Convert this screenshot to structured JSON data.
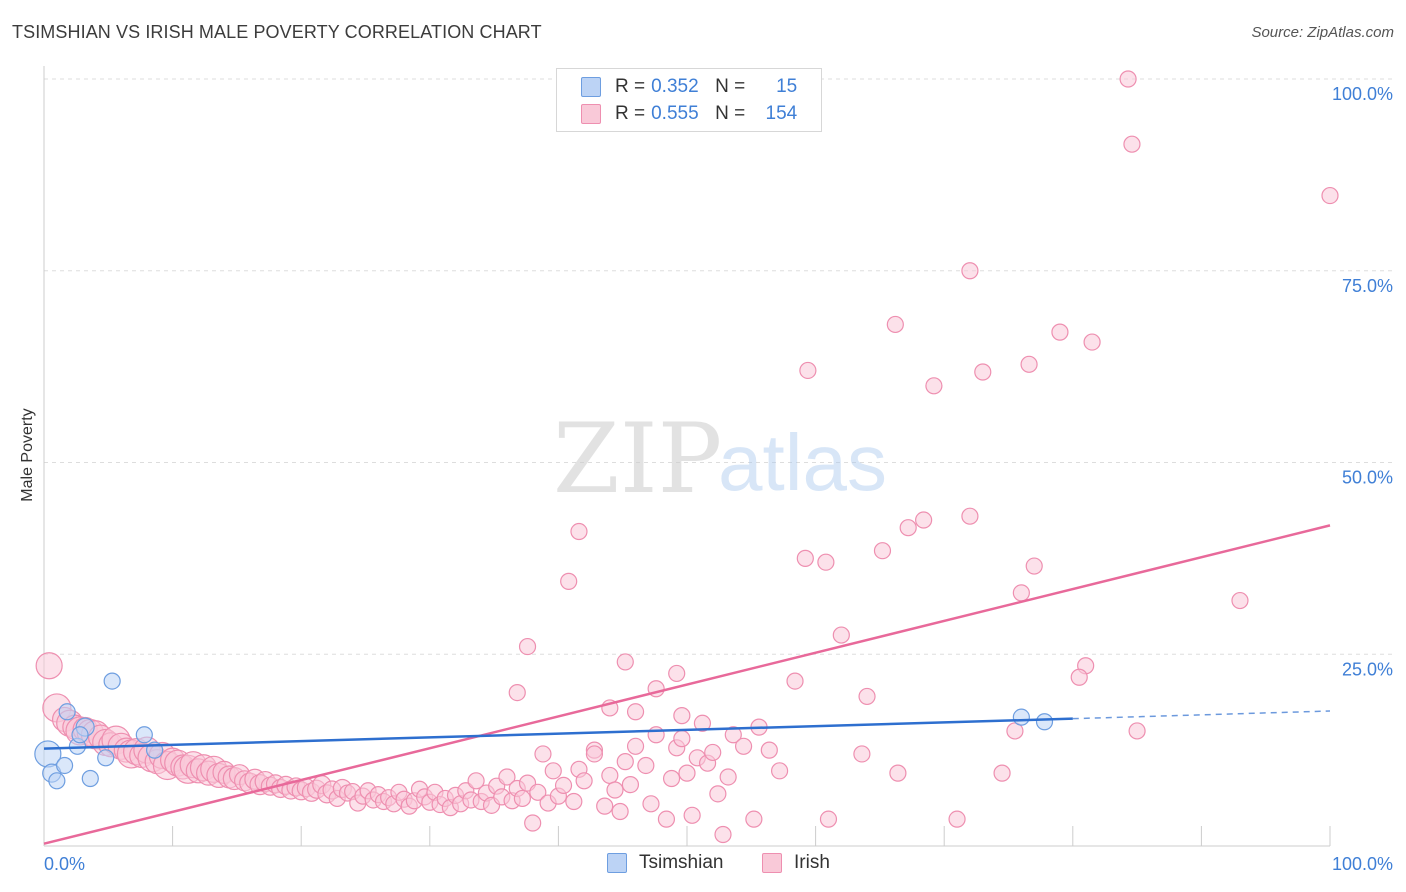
{
  "header": {
    "title": "TSIMSHIAN VS IRISH MALE POVERTY CORRELATION CHART",
    "source": "Source: ZipAtlas.com"
  },
  "colors": {
    "tsimshian_fill": "#bcd3f5",
    "tsimshian_stroke": "#6e9ee0",
    "tsimshian_line": "#2e6fcf",
    "irish_fill": "#f9c9d8",
    "irish_stroke": "#ee8fb0",
    "irish_line": "#e8699a",
    "axis_text": "#3f7fd6",
    "grid": "#dddddd",
    "watermark_zip": "#cccccc",
    "watermark_atlas": "#a9c8ee"
  },
  "legend": {
    "rows": [
      {
        "series": "Tsimshian",
        "r_label": "R =",
        "r_value": "0.352",
        "n_label": "N =",
        "n_value": "15"
      },
      {
        "series": "Irish",
        "r_label": "R =",
        "r_value": "0.555",
        "n_label": "N =",
        "n_value": "154"
      }
    ]
  },
  "watermark": {
    "zip": "ZIP",
    "atlas": "atlas"
  },
  "chart_data": {
    "type": "scatter",
    "title": "TSIMSHIAN VS IRISH MALE POVERTY CORRELATION CHART",
    "xlabel": "",
    "ylabel": "Male Poverty",
    "xlim": [
      0,
      100
    ],
    "ylim": [
      0,
      100
    ],
    "x_tick_labels": [
      "0.0%",
      "100.0%"
    ],
    "y_ticks": [
      25,
      50,
      75,
      100
    ],
    "y_tick_labels": [
      "25.0%",
      "50.0%",
      "75.0%",
      "100.0%"
    ],
    "grid": true,
    "legend_position": "top-center",
    "series": [
      {
        "name": "Tsimshian",
        "r": 0.352,
        "n": 15,
        "trend": {
          "x0": 0,
          "y0": 12.7,
          "x1": 80,
          "y1": 16.6,
          "dashed_to_x": 100,
          "dashed_to_y": 17.6
        },
        "points": [
          [
            0.3,
            12.0,
            13
          ],
          [
            0.6,
            9.5,
            9
          ],
          [
            1.0,
            8.5,
            8
          ],
          [
            1.6,
            10.5,
            8
          ],
          [
            1.8,
            17.5,
            8
          ],
          [
            2.6,
            13.0,
            8
          ],
          [
            3.2,
            15.5,
            9
          ],
          [
            3.6,
            8.8,
            8
          ],
          [
            4.8,
            11.5,
            8
          ],
          [
            5.3,
            21.5,
            8
          ],
          [
            7.8,
            14.5,
            8
          ],
          [
            8.6,
            12.5,
            8
          ],
          [
            76.0,
            16.8,
            8
          ],
          [
            77.8,
            16.2,
            8
          ],
          [
            2.8,
            14.5,
            8
          ]
        ]
      },
      {
        "name": "Irish",
        "r": 0.555,
        "n": 154,
        "trend": {
          "x0": 0,
          "y0": 0.3,
          "x1": 100,
          "y1": 41.8
        },
        "points": [
          [
            0.4,
            23.5,
            13
          ],
          [
            1.0,
            18.0,
            14
          ],
          [
            1.6,
            16.5,
            12
          ],
          [
            2.0,
            16.0,
            13
          ],
          [
            2.4,
            15.5,
            12
          ],
          [
            2.8,
            15.0,
            14
          ],
          [
            3.2,
            15.2,
            12
          ],
          [
            3.6,
            14.8,
            13
          ],
          [
            4.0,
            14.5,
            14
          ],
          [
            4.4,
            14.2,
            12
          ],
          [
            4.8,
            13.5,
            13
          ],
          [
            5.2,
            13.2,
            12
          ],
          [
            5.6,
            13.8,
            14
          ],
          [
            6.0,
            13.0,
            13
          ],
          [
            6.4,
            12.5,
            12
          ],
          [
            6.8,
            12.0,
            14
          ],
          [
            7.2,
            12.3,
            13
          ],
          [
            7.6,
            11.8,
            12
          ],
          [
            8.0,
            12.5,
            13
          ],
          [
            8.4,
            11.5,
            14
          ],
          [
            8.8,
            11.0,
            12
          ],
          [
            9.2,
            11.8,
            13
          ],
          [
            9.6,
            10.5,
            14
          ],
          [
            10.0,
            11.2,
            12
          ],
          [
            10.4,
            10.8,
            13
          ],
          [
            10.8,
            10.3,
            12
          ],
          [
            11.2,
            10.0,
            14
          ],
          [
            11.6,
            10.6,
            13
          ],
          [
            12.0,
            9.8,
            12
          ],
          [
            12.4,
            10.2,
            13
          ],
          [
            12.8,
            9.5,
            12
          ],
          [
            13.2,
            10.0,
            13
          ],
          [
            13.6,
            9.2,
            12
          ],
          [
            14.0,
            9.6,
            11
          ],
          [
            14.4,
            9.0,
            11
          ],
          [
            14.8,
            8.8,
            11
          ],
          [
            15.2,
            9.3,
            10
          ],
          [
            15.6,
            8.5,
            10
          ],
          [
            16.0,
            8.2,
            10
          ],
          [
            16.4,
            8.7,
            10
          ],
          [
            16.8,
            8.0,
            10
          ],
          [
            17.2,
            8.4,
            10
          ],
          [
            17.6,
            7.8,
            9
          ],
          [
            18.0,
            8.1,
            9
          ],
          [
            18.4,
            7.5,
            9
          ],
          [
            18.8,
            7.9,
            9
          ],
          [
            19.2,
            7.3,
            9
          ],
          [
            19.6,
            7.7,
            9
          ],
          [
            20.0,
            7.2,
            9
          ],
          [
            20.4,
            7.6,
            9
          ],
          [
            20.8,
            7.0,
            9
          ],
          [
            21.2,
            7.4,
            9
          ],
          [
            21.6,
            8.0,
            9
          ],
          [
            22.0,
            6.8,
            9
          ],
          [
            22.4,
            7.3,
            9
          ],
          [
            22.8,
            6.2,
            8
          ],
          [
            23.2,
            7.5,
            9
          ],
          [
            23.6,
            6.9,
            8
          ],
          [
            24.0,
            7.1,
            8
          ],
          [
            24.4,
            5.6,
            8
          ],
          [
            24.8,
            6.5,
            8
          ],
          [
            25.2,
            7.2,
            8
          ],
          [
            25.6,
            6.0,
            8
          ],
          [
            26.0,
            6.7,
            8
          ],
          [
            26.4,
            5.8,
            8
          ],
          [
            26.8,
            6.3,
            8
          ],
          [
            27.2,
            5.5,
            8
          ],
          [
            27.6,
            7.0,
            8
          ],
          [
            28.0,
            6.1,
            8
          ],
          [
            28.4,
            5.2,
            8
          ],
          [
            28.8,
            5.9,
            8
          ],
          [
            29.2,
            7.4,
            8
          ],
          [
            29.6,
            6.4,
            8
          ],
          [
            30.0,
            5.7,
            8
          ],
          [
            30.4,
            7.0,
            8
          ],
          [
            30.8,
            5.4,
            8
          ],
          [
            31.2,
            6.2,
            8
          ],
          [
            31.6,
            5.0,
            8
          ],
          [
            32.0,
            6.6,
            8
          ],
          [
            32.4,
            5.5,
            8
          ],
          [
            32.8,
            7.2,
            8
          ],
          [
            33.2,
            6.0,
            8
          ],
          [
            33.6,
            8.5,
            8
          ],
          [
            34.0,
            5.8,
            8
          ],
          [
            34.4,
            6.9,
            8
          ],
          [
            34.8,
            5.3,
            8
          ],
          [
            35.2,
            7.8,
            8
          ],
          [
            35.6,
            6.4,
            8
          ],
          [
            36.0,
            9.0,
            8
          ],
          [
            36.4,
            5.9,
            8
          ],
          [
            36.8,
            7.5,
            8
          ],
          [
            37.2,
            6.2,
            8
          ],
          [
            37.6,
            8.2,
            8
          ],
          [
            38.0,
            3.0,
            8
          ],
          [
            38.4,
            7.0,
            8
          ],
          [
            38.8,
            12.0,
            8
          ],
          [
            39.2,
            5.6,
            8
          ],
          [
            39.6,
            9.8,
            8
          ],
          [
            40.0,
            6.5,
            8
          ],
          [
            40.4,
            7.9,
            8
          ],
          [
            41.2,
            5.8,
            8
          ],
          [
            41.6,
            10.0,
            8
          ],
          [
            42.0,
            8.5,
            8
          ],
          [
            42.8,
            12.5,
            8
          ],
          [
            43.6,
            5.2,
            8
          ],
          [
            44.0,
            9.2,
            8
          ],
          [
            44.4,
            7.3,
            8
          ],
          [
            44.8,
            4.5,
            8
          ],
          [
            45.2,
            11.0,
            8
          ],
          [
            45.6,
            8.0,
            8
          ],
          [
            46.0,
            13.0,
            8
          ],
          [
            46.8,
            10.5,
            8
          ],
          [
            47.2,
            5.5,
            8
          ],
          [
            47.6,
            14.5,
            8
          ],
          [
            48.4,
            3.5,
            8
          ],
          [
            48.8,
            8.8,
            8
          ],
          [
            49.2,
            12.8,
            8
          ],
          [
            49.6,
            14.0,
            8
          ],
          [
            50.0,
            9.5,
            8
          ],
          [
            50.4,
            4.0,
            8
          ],
          [
            50.8,
            11.5,
            8
          ],
          [
            51.2,
            16.0,
            8
          ],
          [
            51.6,
            10.8,
            8
          ],
          [
            52.0,
            12.2,
            8
          ],
          [
            52.4,
            6.8,
            8
          ],
          [
            52.8,
            1.5,
            8
          ],
          [
            53.2,
            9.0,
            8
          ],
          [
            36.8,
            20.0,
            8
          ],
          [
            37.6,
            26.0,
            8
          ],
          [
            40.8,
            34.5,
            8
          ],
          [
            41.6,
            41.0,
            8
          ],
          [
            42.8,
            12.0,
            8
          ],
          [
            44.0,
            18.0,
            8
          ],
          [
            45.2,
            24.0,
            8
          ],
          [
            46.0,
            17.5,
            8
          ],
          [
            47.6,
            20.5,
            8
          ],
          [
            49.2,
            22.5,
            8
          ],
          [
            49.6,
            17.0,
            8
          ],
          [
            53.6,
            14.5,
            8
          ],
          [
            54.4,
            13.0,
            8
          ],
          [
            55.2,
            3.5,
            8
          ],
          [
            55.6,
            15.5,
            8
          ],
          [
            56.4,
            12.5,
            8
          ],
          [
            57.2,
            9.8,
            8
          ],
          [
            58.4,
            21.5,
            8
          ],
          [
            59.2,
            37.5,
            8
          ],
          [
            60.8,
            37.0,
            8
          ],
          [
            62.0,
            27.5,
            8
          ],
          [
            63.6,
            12.0,
            8
          ],
          [
            64.0,
            19.5,
            8
          ],
          [
            65.2,
            38.5,
            8
          ],
          [
            66.4,
            9.5,
            8
          ],
          [
            67.2,
            41.5,
            8
          ],
          [
            68.4,
            42.5,
            8
          ],
          [
            72.0,
            43.0,
            8
          ]
        ]
      }
    ],
    "outliers": {
      "series": "Irish",
      "points": [
        [
          84.3,
          100.0,
          8
        ],
        [
          84.6,
          91.5,
          8
        ],
        [
          100.0,
          84.8,
          8
        ],
        [
          72.0,
          75.0,
          8
        ],
        [
          66.2,
          68.0,
          8
        ],
        [
          79.0,
          67.0,
          8
        ],
        [
          81.5,
          65.7,
          8
        ],
        [
          59.4,
          62.0,
          8
        ],
        [
          69.2,
          60.0,
          8
        ],
        [
          73.0,
          61.8,
          8
        ],
        [
          76.6,
          62.8,
          8
        ],
        [
          93.0,
          32.0,
          8
        ],
        [
          77.0,
          36.5,
          8
        ],
        [
          76.0,
          33.0,
          8
        ],
        [
          81.0,
          23.5,
          8
        ],
        [
          80.5,
          22.0,
          8
        ],
        [
          85.0,
          15.0,
          8
        ],
        [
          75.5,
          15.0,
          8
        ],
        [
          74.5,
          9.5,
          8
        ],
        [
          71.0,
          3.5,
          8
        ],
        [
          61.0,
          3.5,
          8
        ]
      ]
    }
  },
  "bottom_legend": [
    {
      "label": "Tsimshian"
    },
    {
      "label": "Irish"
    }
  ]
}
